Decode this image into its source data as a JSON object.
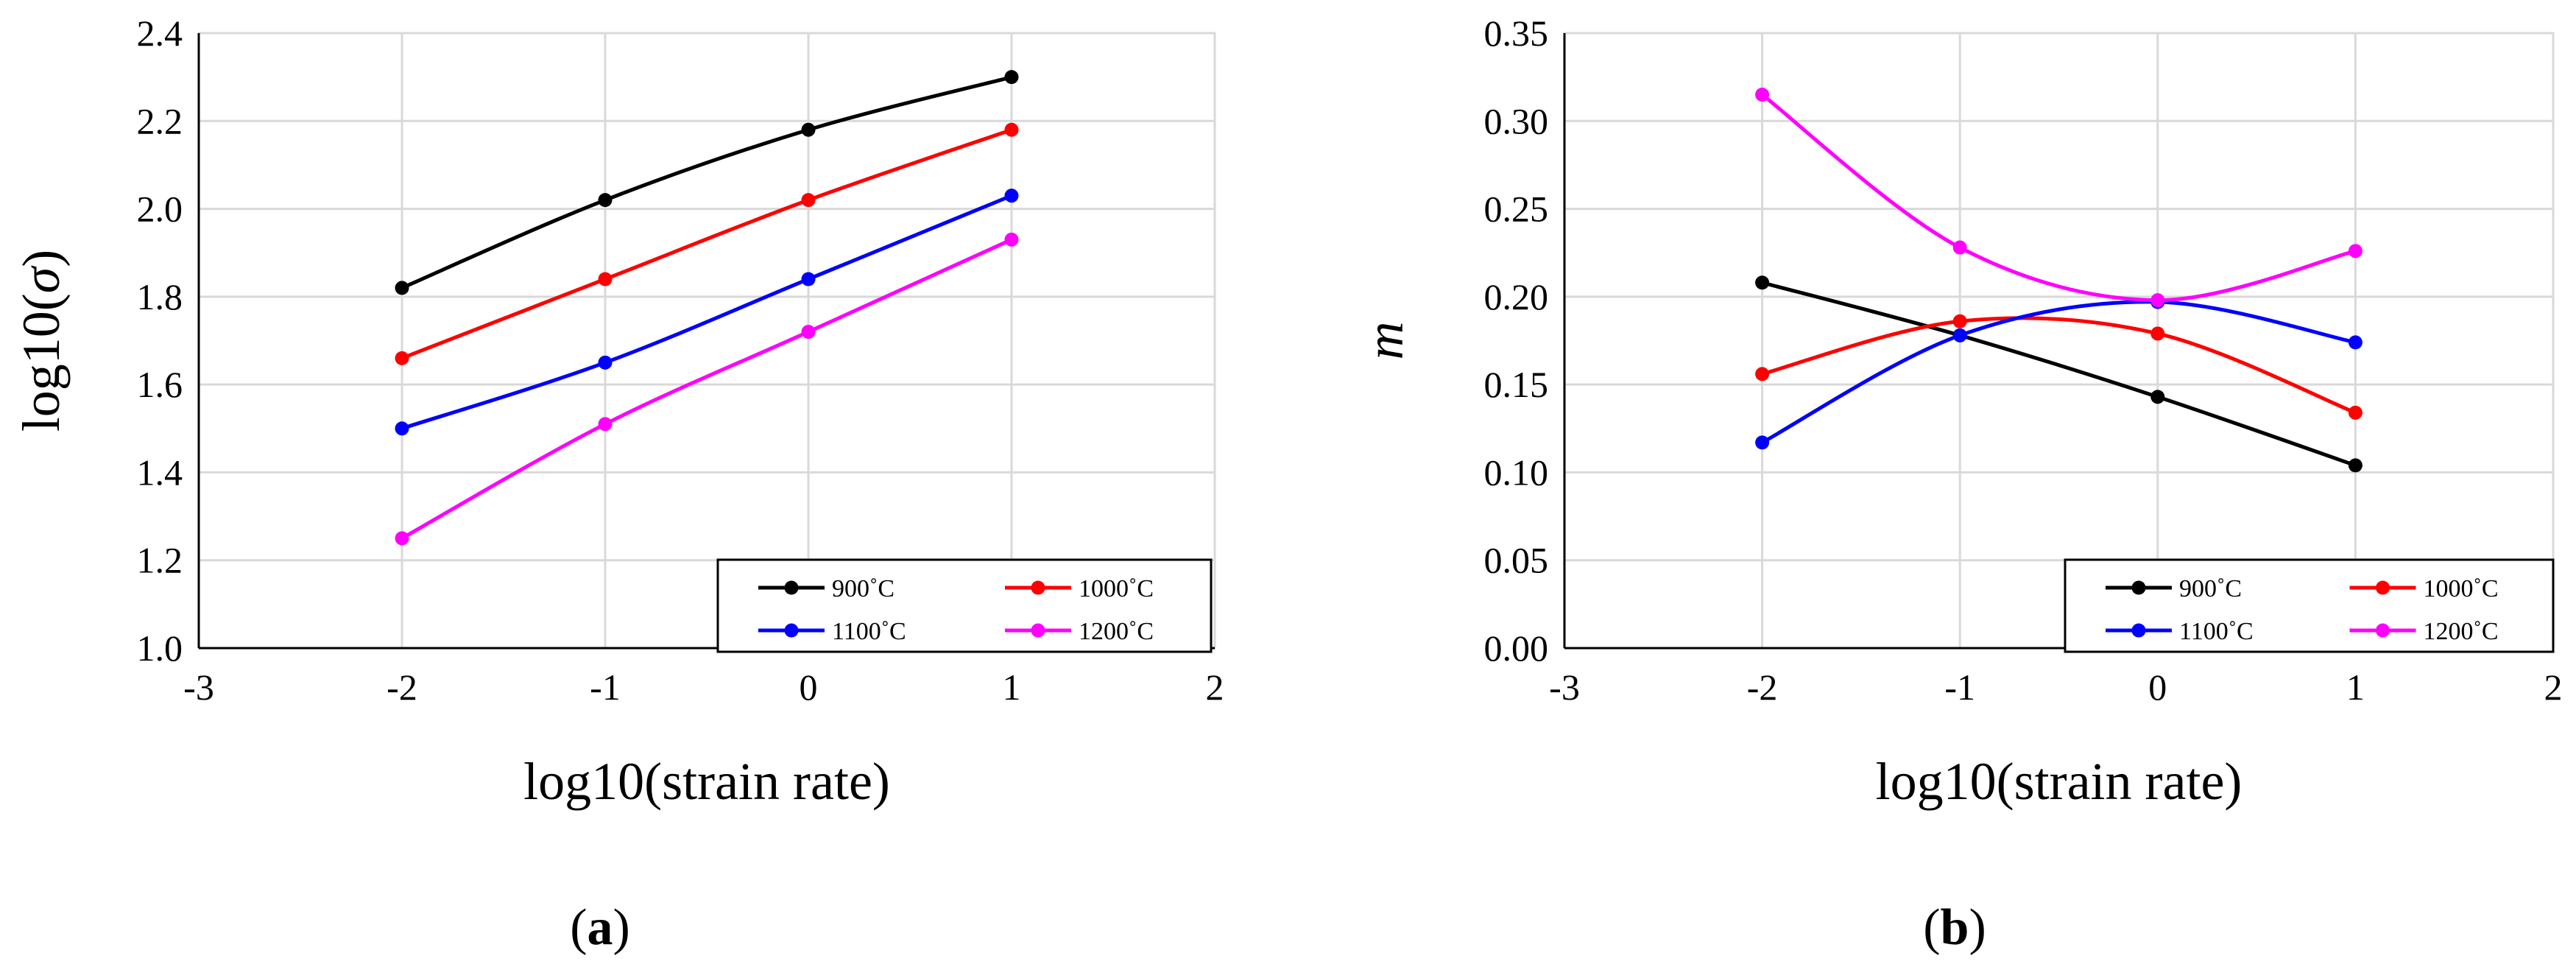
{
  "chart_data": [
    {
      "type": "line",
      "panel_label": "a",
      "xlabel": "log10(strain rate)",
      "ylabel_prefix": "log10(",
      "ylabel_symbol": "σ",
      "ylabel_suffix": ")",
      "xlim": [
        -3,
        2
      ],
      "ylim": [
        1.0,
        2.4
      ],
      "x_ticks": [
        -3,
        -2,
        -1,
        0,
        1,
        2
      ],
      "y_ticks": [
        1.0,
        1.2,
        1.4,
        1.6,
        1.8,
        2.0,
        2.2,
        2.4
      ],
      "y_tick_decimals": 1,
      "grid": true,
      "legend_position": "bottom-right",
      "series": [
        {
          "name": "900˚C",
          "color": "#000000",
          "x": [
            -2,
            -1,
            0,
            1
          ],
          "y": [
            1.82,
            2.02,
            2.18,
            2.3
          ]
        },
        {
          "name": "1000˚C",
          "color": "#ff0000",
          "x": [
            -2,
            -1,
            0,
            1
          ],
          "y": [
            1.66,
            1.84,
            2.02,
            2.18
          ]
        },
        {
          "name": "1100˚C",
          "color": "#0000ff",
          "x": [
            -2,
            -1,
            0,
            1
          ],
          "y": [
            1.5,
            1.65,
            1.84,
            2.03
          ]
        },
        {
          "name": "1200˚C",
          "color": "#ff00ff",
          "x": [
            -2,
            -1,
            0,
            1
          ],
          "y": [
            1.25,
            1.51,
            1.72,
            1.93
          ]
        }
      ]
    },
    {
      "type": "line",
      "panel_label": "b",
      "xlabel": "log10(strain rate)",
      "ylabel_prefix": "",
      "ylabel_symbol": "m",
      "ylabel_suffix": "",
      "xlim": [
        -3,
        2
      ],
      "ylim": [
        0.0,
        0.35
      ],
      "x_ticks": [
        -3,
        -2,
        -1,
        0,
        1,
        2
      ],
      "y_ticks": [
        0.0,
        0.05,
        0.1,
        0.15,
        0.2,
        0.25,
        0.3,
        0.35
      ],
      "y_tick_decimals": 2,
      "grid": true,
      "legend_position": "bottom-right",
      "series": [
        {
          "name": "900˚C",
          "color": "#000000",
          "x": [
            -2,
            -1,
            0,
            1
          ],
          "y": [
            0.208,
            0.178,
            0.143,
            0.104
          ]
        },
        {
          "name": "1000˚C",
          "color": "#ff0000",
          "x": [
            -2,
            -1,
            0,
            1
          ],
          "y": [
            0.156,
            0.186,
            0.179,
            0.134
          ]
        },
        {
          "name": "1100˚C",
          "color": "#0000ff",
          "x": [
            -2,
            -1,
            0,
            1
          ],
          "y": [
            0.117,
            0.178,
            0.197,
            0.174
          ]
        },
        {
          "name": "1200˚C",
          "color": "#ff00ff",
          "x": [
            -2,
            -1,
            0,
            1
          ],
          "y": [
            0.315,
            0.228,
            0.198,
            0.226
          ]
        }
      ]
    }
  ]
}
